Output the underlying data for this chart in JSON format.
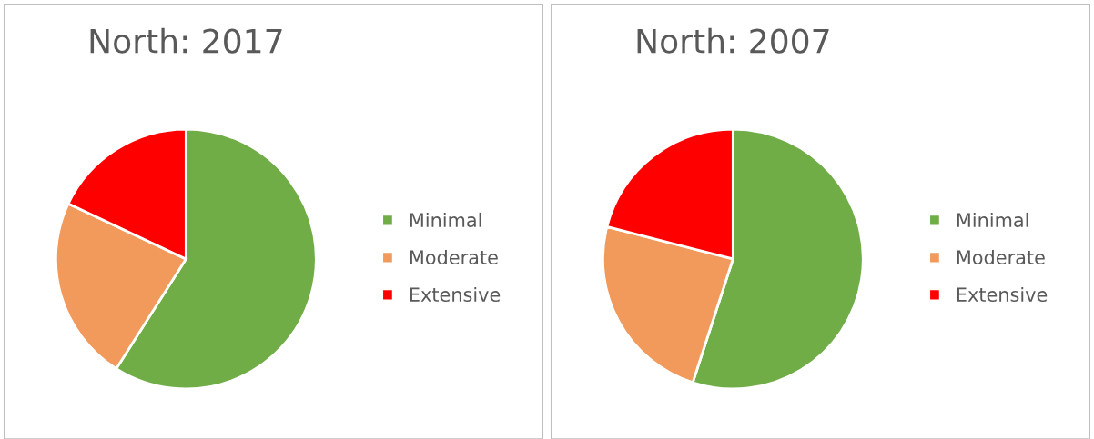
{
  "chart_data": [
    {
      "type": "pie",
      "title": "North: 2017",
      "categories": [
        "Minimal",
        "Moderate",
        "Extensive"
      ],
      "values": [
        59,
        23,
        18
      ],
      "colors": [
        "#70ad47",
        "#f19a5c",
        "#ff0000"
      ],
      "legend": "right"
    },
    {
      "type": "pie",
      "title": "North: 2007",
      "categories": [
        "Minimal",
        "Moderate",
        "Extensive"
      ],
      "values": [
        55,
        24,
        21
      ],
      "colors": [
        "#70ad47",
        "#f19a5c",
        "#ff0000"
      ],
      "legend": "right"
    }
  ]
}
